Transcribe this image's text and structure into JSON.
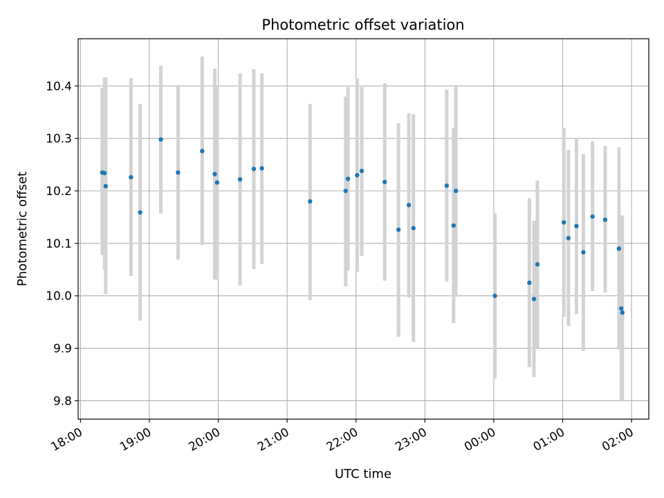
{
  "chart_data": {
    "type": "scatter",
    "title": "Photometric offset variation",
    "xlabel": "UTC time",
    "ylabel": "Photometric offset",
    "x_tick_labels": [
      "18:00",
      "19:00",
      "20:00",
      "21:00",
      "22:00",
      "23:00",
      "00:00",
      "01:00",
      "02:00"
    ],
    "y_tick_labels": [
      "9.8",
      "9.9",
      "10.0",
      "10.1",
      "10.2",
      "10.3",
      "10.4"
    ],
    "x_tick_minutes": [
      0,
      60,
      120,
      180,
      240,
      300,
      360,
      420,
      480
    ],
    "y_ticks": [
      9.8,
      9.9,
      10.0,
      10.1,
      10.2,
      10.3,
      10.4
    ],
    "xlim_minutes": [
      -2,
      495
    ],
    "ylim": [
      9.765,
      10.49
    ],
    "grid": true,
    "marker_color": "#1f77b4",
    "errorbar_color": "#d3d3d3",
    "points": [
      {
        "t": "18:19",
        "y": 10.235,
        "lo": 10.078,
        "hi": 10.396
      },
      {
        "t": "18:21",
        "y": 10.234,
        "lo": 10.05,
        "hi": 10.416
      },
      {
        "t": "18:22",
        "y": 10.209,
        "lo": 10.003,
        "hi": 10.416
      },
      {
        "t": "18:44",
        "y": 10.226,
        "lo": 10.038,
        "hi": 10.415
      },
      {
        "t": "18:52",
        "y": 10.159,
        "lo": 9.953,
        "hi": 10.366
      },
      {
        "t": "19:10",
        "y": 10.298,
        "lo": 10.157,
        "hi": 10.439
      },
      {
        "t": "19:25",
        "y": 10.235,
        "lo": 10.069,
        "hi": 10.402
      },
      {
        "t": "19:46",
        "y": 10.276,
        "lo": 10.097,
        "hi": 10.456
      },
      {
        "t": "19:57",
        "y": 10.232,
        "lo": 10.031,
        "hi": 10.433
      },
      {
        "t": "19:59",
        "y": 10.216,
        "lo": 10.031,
        "hi": 10.401
      },
      {
        "t": "20:19",
        "y": 10.222,
        "lo": 10.02,
        "hi": 10.424
      },
      {
        "t": "20:31",
        "y": 10.242,
        "lo": 10.051,
        "hi": 10.432
      },
      {
        "t": "20:38",
        "y": 10.243,
        "lo": 10.061,
        "hi": 10.424
      },
      {
        "t": "21:20",
        "y": 10.18,
        "lo": 9.992,
        "hi": 10.366
      },
      {
        "t": "21:51",
        "y": 10.2,
        "lo": 10.018,
        "hi": 10.38
      },
      {
        "t": "21:53",
        "y": 10.223,
        "lo": 10.048,
        "hi": 10.398
      },
      {
        "t": "22:01",
        "y": 10.23,
        "lo": 10.046,
        "hi": 10.414
      },
      {
        "t": "22:05",
        "y": 10.238,
        "lo": 10.076,
        "hi": 10.398
      },
      {
        "t": "22:25",
        "y": 10.217,
        "lo": 10.029,
        "hi": 10.405
      },
      {
        "t": "22:37",
        "y": 10.126,
        "lo": 9.922,
        "hi": 10.329
      },
      {
        "t": "22:46",
        "y": 10.173,
        "lo": 9.997,
        "hi": 10.348
      },
      {
        "t": "22:50",
        "y": 10.129,
        "lo": 9.912,
        "hi": 10.346
      },
      {
        "t": "23:19",
        "y": 10.21,
        "lo": 10.027,
        "hi": 10.393
      },
      {
        "t": "23:25",
        "y": 10.134,
        "lo": 9.948,
        "hi": 10.32
      },
      {
        "t": "23:27",
        "y": 10.2,
        "lo": 9.998,
        "hi": 10.402
      },
      {
        "t": "00:01",
        "y": 10.0,
        "lo": 9.842,
        "hi": 10.158
      },
      {
        "t": "00:31",
        "y": 10.025,
        "lo": 9.864,
        "hi": 10.186
      },
      {
        "t": "00:35",
        "y": 9.994,
        "lo": 9.845,
        "hi": 10.143
      },
      {
        "t": "00:38",
        "y": 10.06,
        "lo": 9.9,
        "hi": 10.22
      },
      {
        "t": "01:01",
        "y": 10.14,
        "lo": 9.96,
        "hi": 10.32
      },
      {
        "t": "01:05",
        "y": 10.11,
        "lo": 9.943,
        "hi": 10.278
      },
      {
        "t": "01:12",
        "y": 10.133,
        "lo": 9.965,
        "hi": 10.3
      },
      {
        "t": "01:18",
        "y": 10.083,
        "lo": 9.895,
        "hi": 10.27
      },
      {
        "t": "01:26",
        "y": 10.151,
        "lo": 10.009,
        "hi": 10.295
      },
      {
        "t": "01:37",
        "y": 10.145,
        "lo": 10.006,
        "hi": 10.286
      },
      {
        "t": "01:49",
        "y": 10.09,
        "lo": 9.898,
        "hi": 10.283
      },
      {
        "t": "01:51",
        "y": 9.976,
        "lo": 9.8,
        "hi": 10.153
      },
      {
        "t": "01:52",
        "y": 9.968,
        "lo": 9.8,
        "hi": 10.153
      }
    ]
  }
}
